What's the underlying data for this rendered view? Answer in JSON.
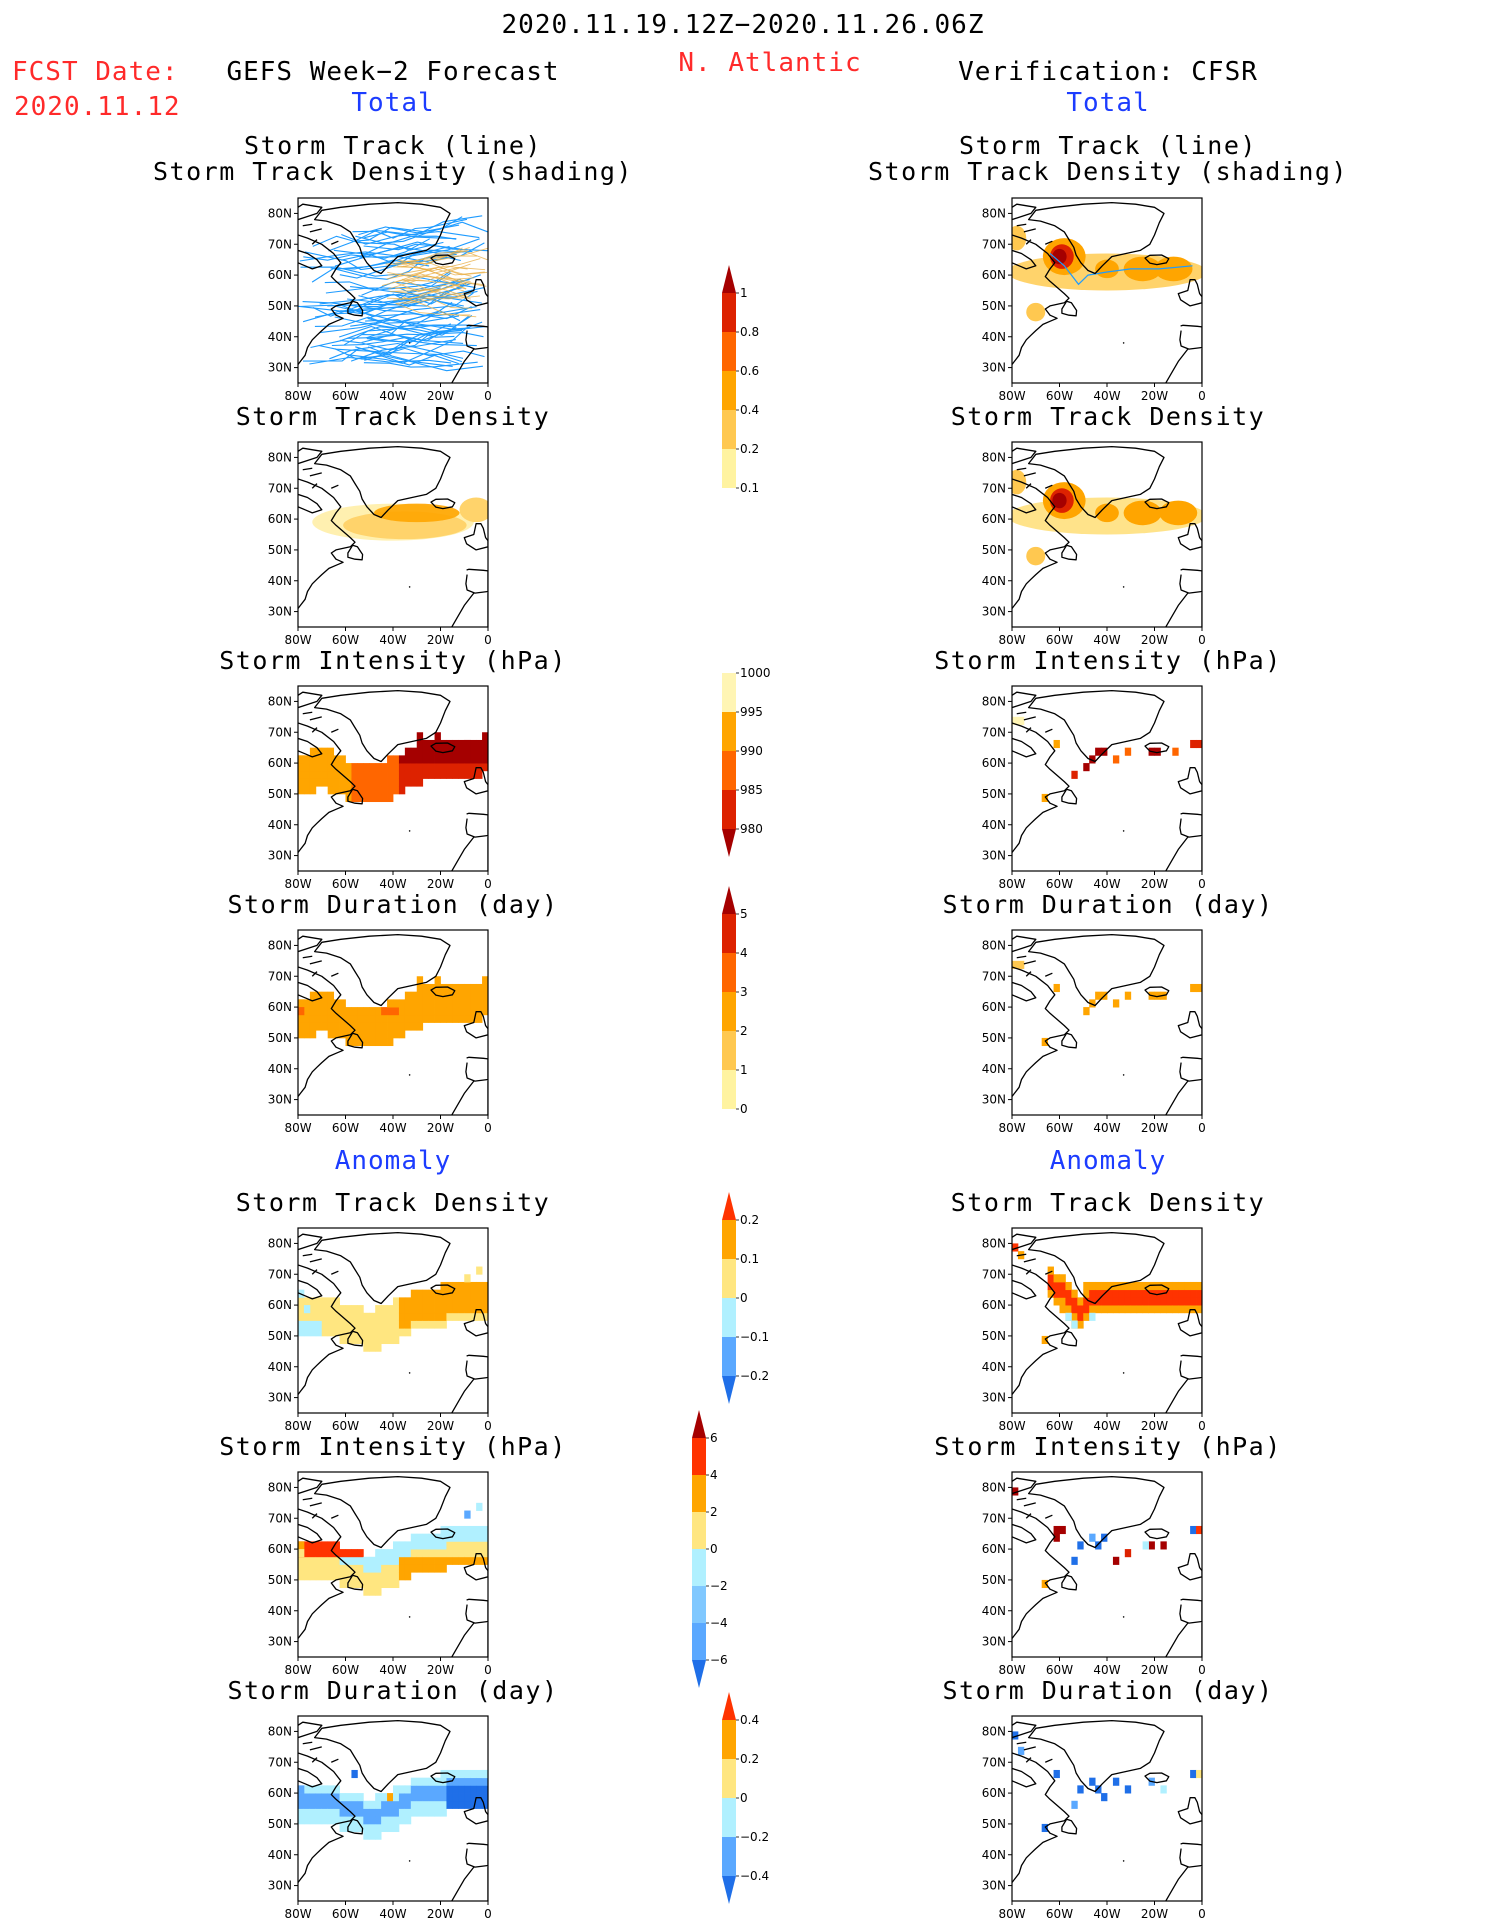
{
  "header": {
    "date_range": "2020.11.19.12Z−2020.11.26.06Z",
    "region": "N. Atlantic",
    "fcst_label": "FCST Date:",
    "fcst_date": "2020.11.12",
    "left_title": "GEFS Week−2 Forecast",
    "right_title": "Verification: CFSR",
    "total_label": "Total",
    "anomaly_label": "Anomaly"
  },
  "axes": {
    "lat_labels": [
      "80N",
      "70N",
      "60N",
      "50N",
      "40N",
      "30N"
    ],
    "lon_labels": [
      "80W",
      "60W",
      "40W",
      "20W",
      "0"
    ]
  },
  "panels": {
    "track": {
      "line1": "Storm Track (line)",
      "line2": "Storm Track Density (shading)"
    },
    "density": "Storm Track Density",
    "intensity": "Storm Intensity (hPa)",
    "duration": "Storm Duration (day)"
  },
  "colorbars": {
    "density": {
      "labels": [
        "1",
        "0.8",
        "0.6",
        "0.4",
        "0.2",
        "0.1"
      ],
      "colors": [
        "#a50000",
        "#dd2200",
        "#ff6600",
        "#ffa500",
        "#ffc850",
        "#fff3a0"
      ]
    },
    "intensity": {
      "labels": [
        "1000",
        "995",
        "990",
        "985",
        "980"
      ],
      "colors": [
        "#fff5b4",
        "#ffa500",
        "#ff6600",
        "#dd2200",
        "#a50000"
      ]
    },
    "duration": {
      "labels": [
        "5",
        "4",
        "3",
        "2",
        "1",
        "0"
      ],
      "colors": [
        "#a50000",
        "#dd2200",
        "#ff6600",
        "#ffa500",
        "#ffc850",
        "#fff3a0"
      ]
    },
    "anom_density": {
      "labels": [
        "0.2",
        "0.1",
        "0",
        "−0.1",
        "−0.2"
      ],
      "colors": [
        "#ff3300",
        "#ffa500",
        "#ffe680",
        "#b0f0ff",
        "#5aa8ff",
        "#1f6fe8"
      ]
    },
    "anom_intensity": {
      "labels": [
        "6",
        "4",
        "2",
        "0",
        "−2",
        "−4",
        "−6"
      ],
      "colors": [
        "#a50000",
        "#ff3300",
        "#ffa500",
        "#ffe680",
        "#b0f0ff",
        "#80c8ff",
        "#5aa8ff",
        "#1f6fe8"
      ]
    },
    "anom_duration": {
      "labels": [
        "0.4",
        "0.2",
        "0",
        "−0.2",
        "−0.4"
      ],
      "colors": [
        "#ff3300",
        "#ffa500",
        "#ffe680",
        "#b0f0ff",
        "#5aa8ff",
        "#1f6fe8"
      ]
    }
  },
  "colors": {
    "track_line": "#1e9bff",
    "coast": "#000000"
  }
}
